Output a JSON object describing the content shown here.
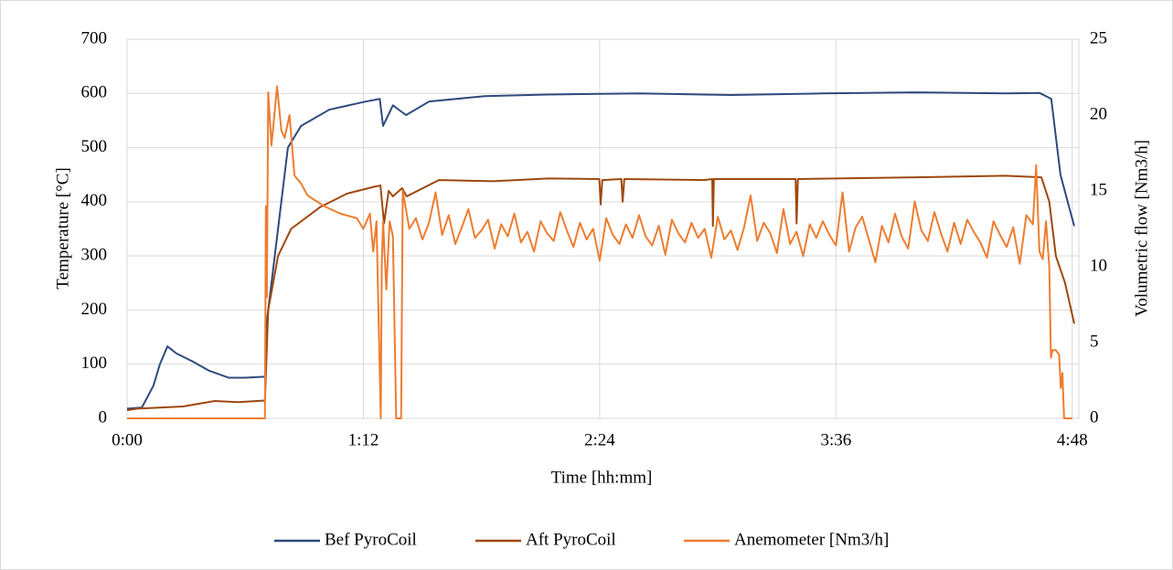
{
  "chart_data": {
    "type": "line",
    "xlabel": "Time [hh:mm]",
    "ylabel": "Temperature [°C]",
    "y2label": "Volumetric flow [Nm3/h]",
    "xlim": [
      0,
      290
    ],
    "xticks": [
      {
        "value": 0,
        "label": "0:00"
      },
      {
        "value": 72,
        "label": "1:12"
      },
      {
        "value": 144,
        "label": "2:24"
      },
      {
        "value": 216,
        "label": "3:36"
      },
      {
        "value": 288,
        "label": "4:48"
      }
    ],
    "ylim": [
      0,
      700
    ],
    "yticks": [
      0,
      100,
      200,
      300,
      400,
      500,
      600,
      700
    ],
    "y2lim": [
      0,
      25
    ],
    "y2ticks": [
      0,
      5,
      10,
      15,
      20,
      25
    ],
    "grid": true,
    "legend": "bottom",
    "series": [
      {
        "name": "Bef PyroCoil",
        "color": "#2e4a7d",
        "x": [
          0,
          4.5,
          8,
          10,
          12.3,
          15,
          20,
          25,
          31,
          36,
          42,
          42.6,
          45,
          49,
          53,
          61.6,
          72.7,
          77,
          78,
          81,
          85,
          92,
          109,
          128,
          156,
          184,
          212,
          240,
          267.7,
          278,
          281.6,
          283,
          284.4,
          286.6,
          288.6
        ],
        "values": [
          18,
          20,
          60,
          100,
          133,
          120,
          105,
          88,
          75,
          75,
          77,
          180,
          300,
          500,
          540,
          570,
          585,
          590,
          540,
          578,
          560,
          585,
          595,
          598,
          600,
          597,
          600,
          602,
          600,
          601,
          590,
          520,
          450,
          400,
          355
        ]
      },
      {
        "name": "Aft PyroCoil",
        "color": "#9e480e",
        "x": [
          0,
          3,
          17,
          26.7,
          33.7,
          42,
          43,
          46,
          50,
          58.8,
          67,
          75.5,
          77.2,
          78.3,
          79.7,
          81,
          83.8,
          85.2,
          95,
          111.7,
          128.4,
          143.9,
          144.3,
          144.8,
          150.6,
          151,
          151.5,
          175.8,
          178.3,
          178.5,
          178.8,
          203.7,
          204,
          204.4,
          240,
          267.7,
          278.6,
          281,
          283,
          285.8,
          288.6
        ],
        "values": [
          15,
          18,
          22,
          32,
          30,
          33,
          200,
          300,
          350,
          390,
          415,
          428,
          430,
          360,
          420,
          410,
          425,
          410,
          440,
          438,
          443,
          442,
          395,
          440,
          442,
          400,
          442,
          440,
          442,
          355,
          442,
          442,
          360,
          442,
          445,
          448,
          445,
          400,
          300,
          250,
          175
        ]
      },
      {
        "name": "Anemometer [Nm3/h]",
        "color": "#ed7d31",
        "axis": "y2",
        "x": [
          0,
          42,
          42.3,
          42.6,
          43,
          44,
          45.7,
          47,
          48,
          49.5,
          51,
          53,
          55,
          60,
          65,
          70,
          72,
          74,
          75,
          76,
          77.3,
          77.6,
          78,
          79,
          80,
          81,
          82,
          83.5,
          84,
          86,
          88,
          90,
          92,
          94,
          96,
          98,
          100,
          102,
          104,
          106,
          108,
          110,
          112,
          114,
          116,
          118,
          120,
          122,
          124,
          126,
          128,
          130,
          132,
          134,
          136,
          138,
          140,
          142,
          144,
          146,
          148,
          150,
          152,
          154,
          156,
          158,
          160,
          162,
          164,
          166,
          168,
          170,
          172,
          174,
          176,
          178,
          180,
          182,
          184,
          186,
          188,
          190,
          192,
          194,
          196,
          198,
          200,
          202,
          204,
          206,
          208,
          210,
          212,
          214,
          216,
          218,
          220,
          222,
          224,
          226,
          228,
          230,
          232,
          234,
          236,
          238,
          240,
          242,
          244,
          246,
          248,
          250,
          252,
          254,
          256,
          258,
          260,
          262,
          264,
          266,
          268,
          270,
          272,
          274,
          276,
          277,
          278,
          279,
          280,
          281,
          281.5,
          282,
          283,
          284,
          284.5,
          285,
          285.5,
          288
        ],
        "values": [
          0,
          0,
          14,
          8,
          21.5,
          18,
          21.9,
          19,
          18.5,
          20,
          16,
          15.5,
          14.7,
          14,
          13.5,
          13.2,
          12.5,
          13.5,
          11,
          13,
          0,
          10,
          13,
          8.5,
          13,
          12,
          0,
          0,
          15,
          12.5,
          13.2,
          11.8,
          12.9,
          14.9,
          12.1,
          13.4,
          11.5,
          12.6,
          13.8,
          11.9,
          12.4,
          13.1,
          11.2,
          12.8,
          12.0,
          13.5,
          11.6,
          12.3,
          11.0,
          13.0,
          12.2,
          11.7,
          13.6,
          12.4,
          11.3,
          12.9,
          11.8,
          12.5,
          10.4,
          13.2,
          12.1,
          11.5,
          12.8,
          11.9,
          13.4,
          12.0,
          11.4,
          12.7,
          10.8,
          13.1,
          12.2,
          11.6,
          12.9,
          11.9,
          12.5,
          10.6,
          13.3,
          11.8,
          12.4,
          11.1,
          12.6,
          14.7,
          11.7,
          12.9,
          12.2,
          10.9,
          13.8,
          11.5,
          12.3,
          10.7,
          12.8,
          11.9,
          13.0,
          12.1,
          11.4,
          14.9,
          11.0,
          12.6,
          13.3,
          11.8,
          10.3,
          12.7,
          11.6,
          13.5,
          12.0,
          11.2,
          14.3,
          12.4,
          11.7,
          13.6,
          12.2,
          11.0,
          12.9,
          11.5,
          13.1,
          12.3,
          11.6,
          10.6,
          13.0,
          12.1,
          11.3,
          12.6,
          10.2,
          13.4,
          12.8,
          16.7,
          11,
          10.5,
          13,
          10,
          4,
          4.5,
          4.5,
          4.2,
          2,
          3,
          0,
          0
        ]
      }
    ]
  }
}
